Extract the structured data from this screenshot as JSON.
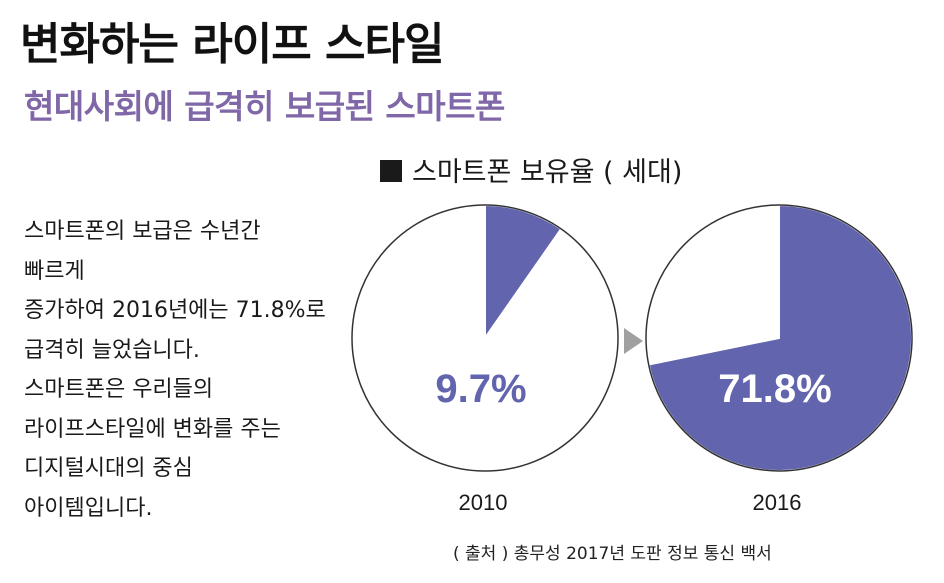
{
  "page": {
    "title": "변화하는 라이프 스타일",
    "subtitle": "현대사회에 급격히 보급된 스마트폰",
    "body_lines": [
      "스마트폰의 보급은 수년간",
      "빠르게",
      "증가하여 2016년에는 71.8%로",
      "급격히 늘었습니다.",
      "스마트폰은 우리들의",
      "라이프스타일에 변화를 주는",
      "디지털시대의 중심",
      "아이템입니다."
    ],
    "source": "( 출처 ) 총무성 2017년 도판 정보 통신 백서",
    "arrow_icon": "triangle-right-icon"
  },
  "colors": {
    "accent": "#6264ad",
    "subtitle": "#7f67a8",
    "text": "#1a1a1a",
    "pie_outline": "#333333",
    "pie_background": "#ffffff",
    "arrow": "#a0a0a0"
  },
  "chart_data": {
    "type": "pie",
    "title": "■ 스마트폰 보유율 ( 세대)",
    "title_text": "스마트폰 보유율 ( 세대)",
    "charts": [
      {
        "label": "2010",
        "value": 9.7,
        "value_label": "9.7%"
      },
      {
        "label": "2016",
        "value": 71.8,
        "value_label": "71.8%"
      }
    ],
    "unit": "%",
    "legend": "none"
  }
}
